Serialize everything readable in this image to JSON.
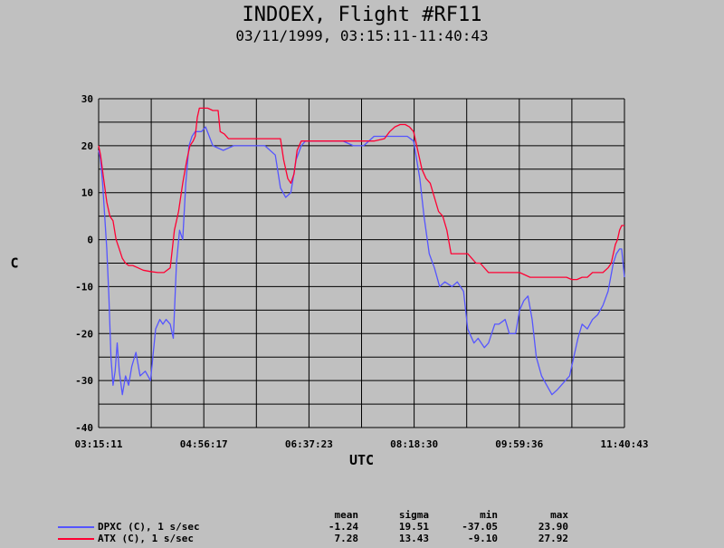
{
  "chart_data": {
    "type": "line",
    "title": "INDOEX, Flight #RF11",
    "subtitle": "03/11/1999, 03:15:11-11:40:43",
    "xlabel": "UTC",
    "ylabel": "C",
    "xlim": [
      "03:15:11",
      "11:40:43"
    ],
    "ylim": [
      -40,
      30
    ],
    "x_ticks": [
      "03:15:11",
      "04:56:17",
      "06:37:23",
      "08:18:30",
      "09:59:36",
      "11:40:43"
    ],
    "y_ticks": [
      30,
      20,
      10,
      0,
      -10,
      -20,
      -30,
      -40
    ],
    "grid": true,
    "series": [
      {
        "name": "DPXC (C), 1 s/sec",
        "color": "#5555ff",
        "x": [
          "03:15:11",
          "03:17:00",
          "03:19:00",
          "03:21:00",
          "03:23:00",
          "03:25:00",
          "03:27:00",
          "03:29:00",
          "03:31:00",
          "03:33:00",
          "03:35:00",
          "03:38:00",
          "03:41:00",
          "03:44:00",
          "03:47:00",
          "03:51:00",
          "03:55:00",
          "04:00:00",
          "04:05:00",
          "04:10:00",
          "04:14:00",
          "04:17:00",
          "04:20:00",
          "04:24:00",
          "04:27:00",
          "04:30:00",
          "04:33:00",
          "04:36:00",
          "04:39:00",
          "04:42:00",
          "04:45:00",
          "04:48:00",
          "04:51:00",
          "04:54:00",
          "04:58:00",
          "05:05:00",
          "05:15:00",
          "05:25:00",
          "05:35:00",
          "05:45:00",
          "05:55:00",
          "06:05:00",
          "06:10:00",
          "06:15:00",
          "06:20:00",
          "06:25:00",
          "06:30:00",
          "06:34:00",
          "06:38:00",
          "06:43:00",
          "06:50:00",
          "07:00:00",
          "07:10:00",
          "07:20:00",
          "07:30:00",
          "07:40:00",
          "07:50:00",
          "08:00:00",
          "08:06:00",
          "08:12:00",
          "08:18:00",
          "08:24:00",
          "08:28:00",
          "08:33:00",
          "08:38:00",
          "08:43:00",
          "08:48:00",
          "08:55:00",
          "09:00:00",
          "09:06:00",
          "09:10:00",
          "09:16:00",
          "09:20:00",
          "09:26:00",
          "09:30:00",
          "09:36:00",
          "09:40:00",
          "09:46:00",
          "09:50:00",
          "09:56:00",
          "10:00:00",
          "10:04:00",
          "10:08:00",
          "10:12:00",
          "10:16:00",
          "10:21:00",
          "10:26:00",
          "10:31:00",
          "10:36:00",
          "10:40:00",
          "10:44:00",
          "10:48:00",
          "10:52:00",
          "10:56:00",
          "11:00:00",
          "11:05:00",
          "11:10:00",
          "11:15:00",
          "11:20:00",
          "11:25:00",
          "11:30:00",
          "11:33:00",
          "11:36:00",
          "11:38:00",
          "11:40:43"
        ],
        "values": [
          19,
          17,
          12,
          5,
          -2,
          -12,
          -25,
          -31,
          -28,
          -22,
          -28,
          -33,
          -29,
          -31,
          -27,
          -24,
          -29,
          -28,
          -30,
          -19,
          -17,
          -18,
          -17,
          -18,
          -21,
          -5,
          2,
          0,
          12,
          20,
          22,
          23,
          23,
          23,
          24,
          20,
          19,
          20,
          20,
          20,
          20,
          18,
          11,
          9,
          10,
          17,
          20,
          21,
          21,
          21,
          21,
          21,
          21,
          20,
          20,
          22,
          22,
          22,
          22,
          22,
          21,
          13,
          5,
          -3,
          -6,
          -10,
          -9,
          -10,
          -9,
          -11,
          -19,
          -22,
          -21,
          -23,
          -22,
          -18,
          -18,
          -17,
          -20,
          -20,
          -15,
          -13,
          -12,
          -17,
          -25,
          -29,
          -31,
          -33,
          -32,
          -31,
          -30,
          -29,
          -25,
          -21,
          -18,
          -19,
          -17,
          -16,
          -14,
          -11,
          -5,
          -3,
          -2,
          -2,
          -8
        ]
      },
      {
        "name": "ATX (C), 1 s/sec",
        "color": "#ff0033",
        "x": [
          "03:15:11",
          "03:17:00",
          "03:20:00",
          "03:23:00",
          "03:26:00",
          "03:29:00",
          "03:32:00",
          "03:35:00",
          "03:38:00",
          "03:41:00",
          "03:44:00",
          "03:48:00",
          "03:53:00",
          "03:58:00",
          "04:05:00",
          "04:12:00",
          "04:18:00",
          "04:24:00",
          "04:28:00",
          "04:32:00",
          "04:36:00",
          "04:40:00",
          "04:43:00",
          "04:46:00",
          "04:48:00",
          "04:50:00",
          "04:52:00",
          "04:55:00",
          "05:00:00",
          "05:05:00",
          "05:10:00",
          "05:12:00",
          "05:16:00",
          "05:20:00",
          "05:30:00",
          "05:40:00",
          "05:50:00",
          "06:00:00",
          "06:05:00",
          "06:10:00",
          "06:13:00",
          "06:17:00",
          "06:20:00",
          "06:23:00",
          "06:26:00",
          "06:30:00",
          "06:40:00",
          "06:50:00",
          "07:00:00",
          "07:10:00",
          "07:20:00",
          "07:30:00",
          "07:40:00",
          "07:50:00",
          "07:55:00",
          "08:00:00",
          "08:05:00",
          "08:10:00",
          "08:14:00",
          "08:18:00",
          "08:22:00",
          "08:26:00",
          "08:30:00",
          "08:34:00",
          "08:38:00",
          "08:42:00",
          "08:46:00",
          "08:50:00",
          "08:54:00",
          "08:58:00",
          "09:02:00",
          "09:06:00",
          "09:10:00",
          "09:14:00",
          "09:18:00",
          "09:22:00",
          "09:30:00",
          "09:40:00",
          "09:50:00",
          "10:00:00",
          "10:05:00",
          "10:10:00",
          "10:20:00",
          "10:30:00",
          "10:35:00",
          "10:40:00",
          "10:45:00",
          "10:50:00",
          "10:55:00",
          "11:00:00",
          "11:05:00",
          "11:10:00",
          "11:15:00",
          "11:20:00",
          "11:25:00",
          "11:28:00",
          "11:30:00",
          "11:32:00",
          "11:34:00",
          "11:36:00",
          "11:38:00",
          "11:40:43"
        ],
        "values": [
          20,
          18,
          13,
          8,
          5,
          4,
          0,
          -2,
          -4,
          -5,
          -5.5,
          -5.5,
          -6,
          -6.5,
          -6.8,
          -7,
          -7,
          -6,
          2,
          6,
          12,
          17,
          20,
          21,
          22,
          26,
          28,
          28,
          28,
          27.5,
          27.5,
          23,
          22.5,
          21.5,
          21.5,
          21.5,
          21.5,
          21.5,
          21.5,
          21.5,
          17,
          13,
          12,
          14,
          19,
          21,
          21,
          21,
          21,
          21,
          21,
          21,
          21,
          21.5,
          23,
          24,
          24.5,
          24.5,
          24,
          23,
          19,
          15,
          13,
          12,
          9,
          6,
          5,
          2,
          -3,
          -3,
          -3,
          -3,
          -3,
          -4,
          -5,
          -5,
          -7,
          -7,
          -7,
          -7,
          -7.5,
          -8,
          -8,
          -8,
          -8,
          -8,
          -8,
          -8.5,
          -8.5,
          -8,
          -8,
          -7,
          -7,
          -7,
          -6,
          -5,
          -3,
          -1,
          0,
          2,
          3,
          3
        ]
      }
    ],
    "legend_placement": "bottom"
  },
  "stats": {
    "headers": [
      "mean",
      "sigma",
      "min",
      "max"
    ],
    "rows": [
      {
        "label": "DPXC (C), 1 s/sec",
        "color": "#5555ff",
        "mean": "-1.24",
        "sigma": "19.51",
        "min": "-37.05",
        "max": "23.90"
      },
      {
        "label": "ATX (C), 1 s/sec",
        "color": "#ff0033",
        "mean": "7.28",
        "sigma": "13.43",
        "min": "-9.10",
        "max": "27.92"
      }
    ]
  }
}
